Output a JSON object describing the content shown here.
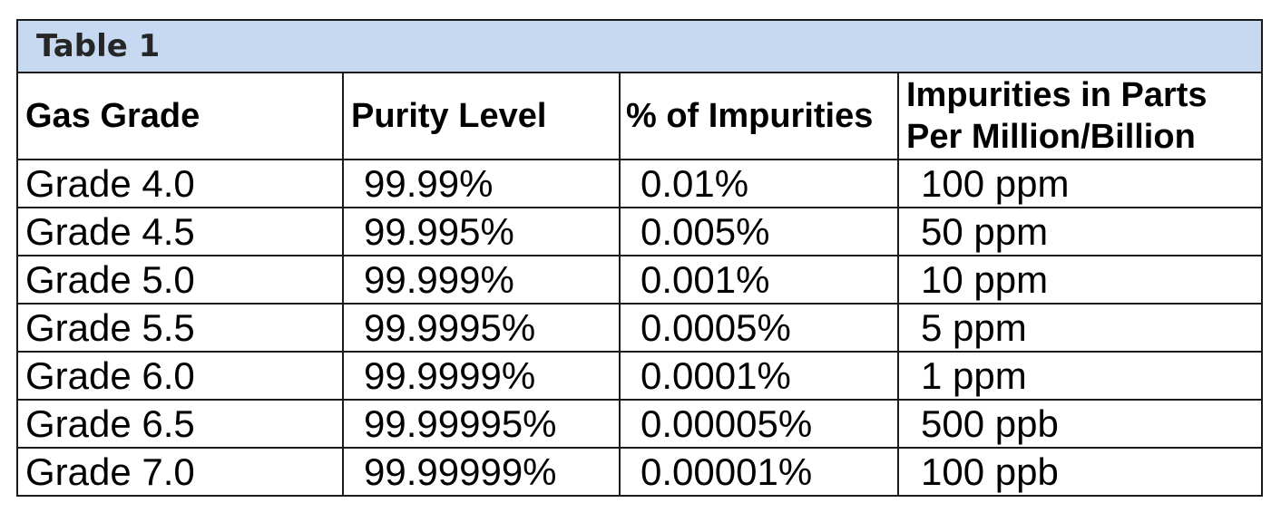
{
  "table": {
    "title": "Table 1",
    "headers": [
      "Gas Grade",
      "Purity Level",
      "% of Impurities",
      "Impurities in Parts Per Million/Billion"
    ],
    "rows": [
      [
        "Grade 4.0",
        "99.99%",
        "0.01%",
        "100 ppm"
      ],
      [
        "Grade 4.5",
        "99.995%",
        "0.005%",
        "50 ppm"
      ],
      [
        "Grade 5.0",
        "99.999%",
        "0.001%",
        "10 ppm"
      ],
      [
        "Grade 5.5",
        "99.9995%",
        "0.0005%",
        "5 ppm"
      ],
      [
        "Grade 6.0",
        "99.9999%",
        "0.0001%",
        "1 ppm"
      ],
      [
        "Grade 6.5",
        "99.99995%",
        "0.00005%",
        "500 ppb"
      ],
      [
        "Grade 7.0",
        "99.99999%",
        "0.00001%",
        "100 ppb"
      ]
    ]
  },
  "colors": {
    "title_background": "#c6d9f1",
    "border": "#1a1a1a"
  }
}
